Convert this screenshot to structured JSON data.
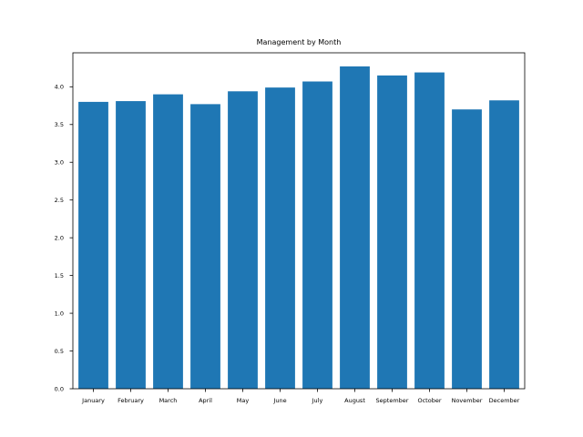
{
  "chart_data": {
    "type": "bar",
    "title": "Management by Month",
    "xlabel": "",
    "ylabel": "",
    "categories": [
      "January",
      "February",
      "March",
      "April",
      "May",
      "June",
      "July",
      "August",
      "September",
      "October",
      "November",
      "December"
    ],
    "values": [
      3.8,
      3.81,
      3.9,
      3.77,
      3.94,
      3.99,
      4.07,
      4.27,
      4.15,
      4.19,
      3.7,
      3.82
    ],
    "ylim": [
      0,
      4.45
    ],
    "yticks": [
      0.0,
      0.5,
      1.0,
      1.5,
      2.0,
      2.5,
      3.0,
      3.5,
      4.0
    ],
    "ytick_labels": [
      "0.0",
      "0.5",
      "1.0",
      "1.5",
      "2.0",
      "2.5",
      "3.0",
      "3.5",
      "4.0"
    ],
    "grid": false,
    "bar_color": "#1f77b4"
  }
}
